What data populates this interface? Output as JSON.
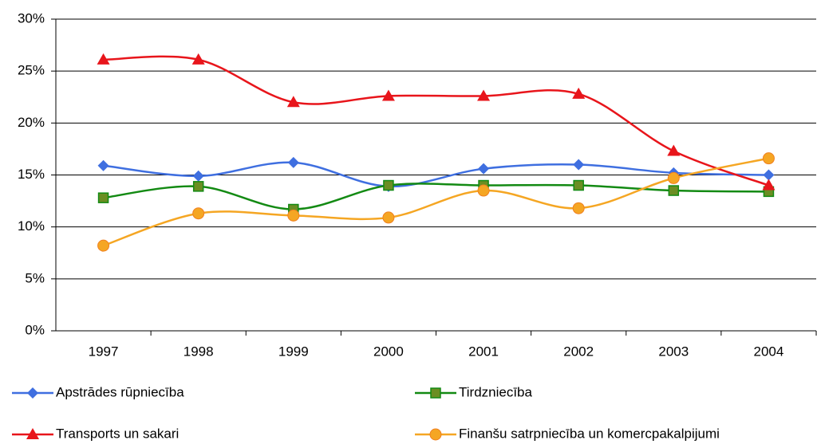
{
  "chart_data": {
    "type": "line",
    "smooth": true,
    "categories": [
      "1997",
      "1998",
      "1999",
      "2000",
      "2001",
      "2002",
      "2003",
      "2004"
    ],
    "series": [
      {
        "name": "Apstrādes rūpniecība",
        "color": "#3f6fe0",
        "marker": "diamond",
        "values": [
          15.9,
          14.9,
          16.2,
          13.9,
          15.6,
          16.0,
          15.2,
          15.0
        ]
      },
      {
        "name": "Tirdzniecība",
        "color": "#138a13",
        "marker": "square",
        "values": [
          12.8,
          13.9,
          11.7,
          14.0,
          14.0,
          14.0,
          13.5,
          13.4
        ]
      },
      {
        "name": "Transports un sakari",
        "color": "#e8151b",
        "marker": "triangle",
        "values": [
          26.1,
          26.1,
          22.0,
          22.6,
          22.6,
          22.8,
          17.3,
          14.0
        ]
      },
      {
        "name": "Finanšu satrpniecība un komercpakalpijumi",
        "color": "#f5a623",
        "marker": "circle",
        "values": [
          8.2,
          11.3,
          11.1,
          10.9,
          13.5,
          11.8,
          14.7,
          16.6
        ]
      }
    ],
    "ylim": [
      0,
      30
    ],
    "yticks": [
      {
        "value": 0,
        "label": "0%"
      },
      {
        "value": 5,
        "label": "5%"
      },
      {
        "value": 10,
        "label": "10%"
      },
      {
        "value": 15,
        "label": "15%"
      },
      {
        "value": 20,
        "label": "20%"
      },
      {
        "value": 25,
        "label": "25%"
      },
      {
        "value": 30,
        "label": "30%"
      }
    ],
    "grid": true,
    "legend": "bottom"
  }
}
